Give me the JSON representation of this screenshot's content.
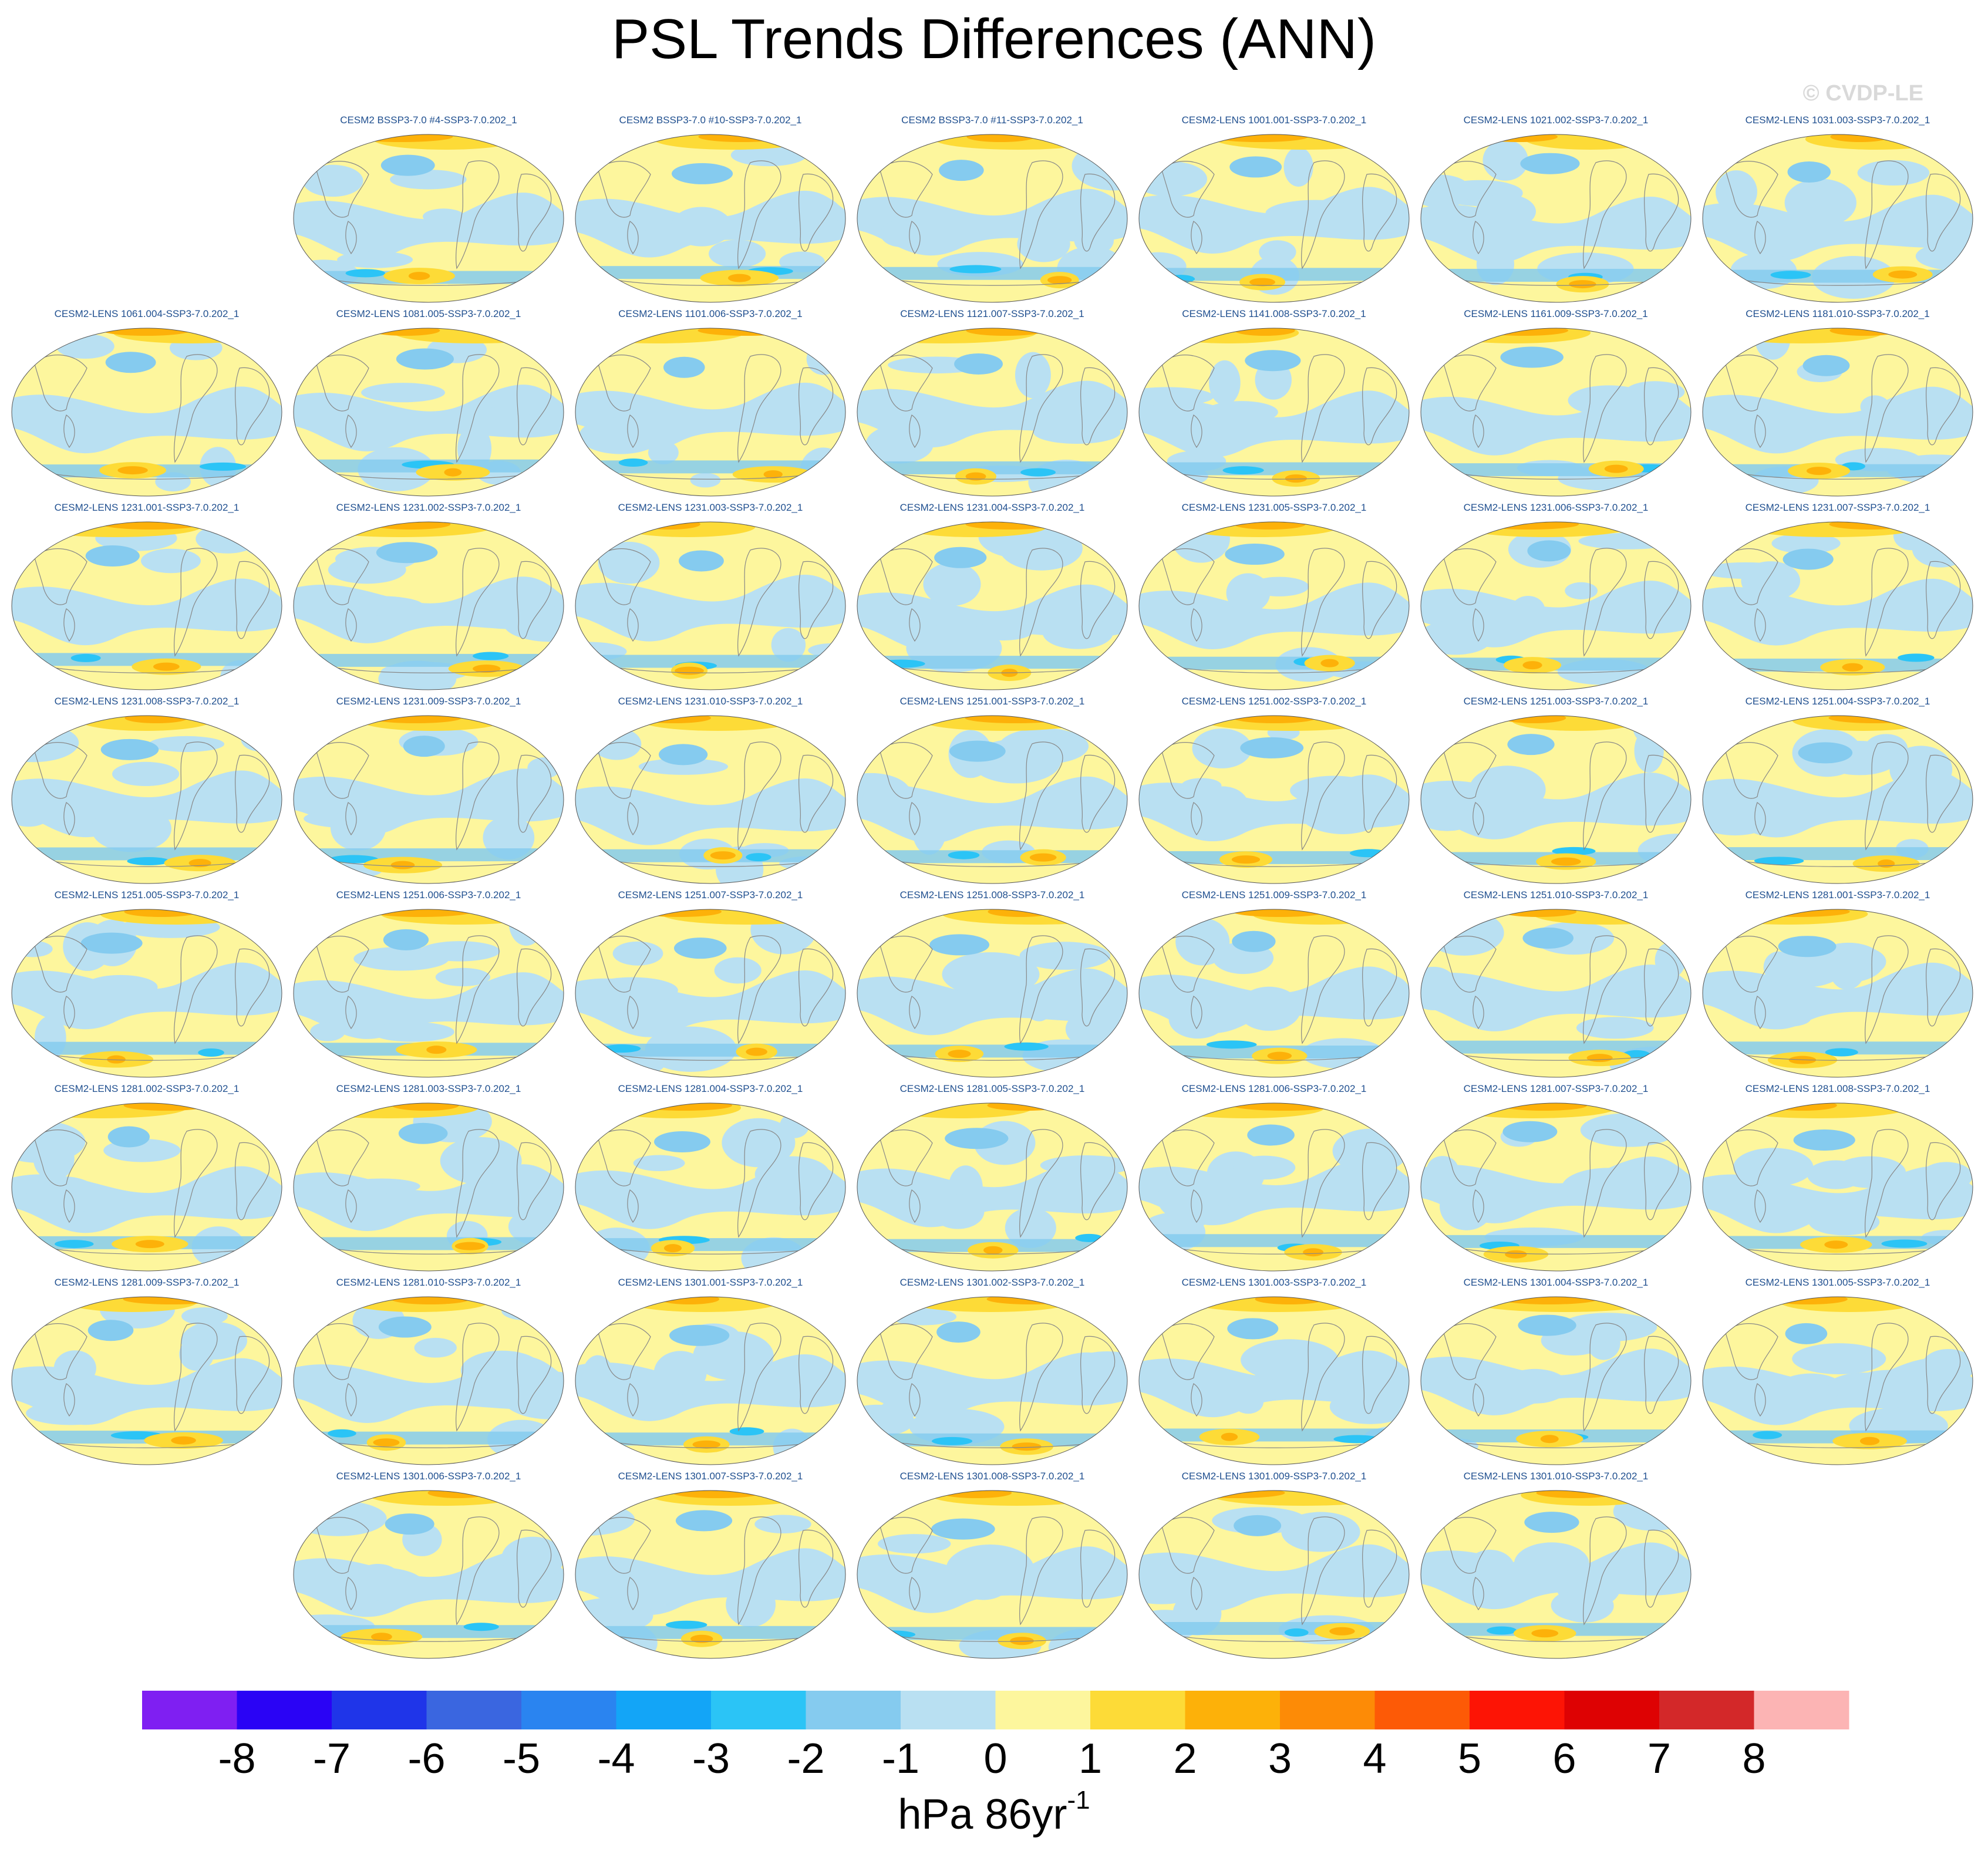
{
  "title": "PSL Trends Differences (ANN)",
  "copyright": "© CVDP-LE",
  "units": {
    "base": "hPa 86yr",
    "exponent": "-1"
  },
  "colorbar": {
    "colors": [
      "#7f1ff2",
      "#2a03f5",
      "#1f35e9",
      "#3a66e0",
      "#2a84f0",
      "#13a5f7",
      "#2bc4f6",
      "#85cbef",
      "#b9e0f2",
      "#fdf69d",
      "#fddb37",
      "#fdb109",
      "#fd8b06",
      "#fd5a06",
      "#fd1405",
      "#de0203",
      "#d32829",
      "#fcb4b4"
    ],
    "labels": [
      "-8",
      "-7",
      "-6",
      "-5",
      "-4",
      "-3",
      "-2",
      "-1",
      "0",
      "1",
      "2",
      "3",
      "4",
      "5",
      "6",
      "7",
      "8"
    ]
  },
  "rows": [
    {
      "panels": [
        "",
        "CESM2 BSSP3-7.0 #4-SSP3-7.0.202_1",
        "CESM2 BSSP3-7.0 #10-SSP3-7.0.202_1",
        "CESM2 BSSP3-7.0 #11-SSP3-7.0.202_1",
        "CESM2-LENS 1001.001-SSP3-7.0.202_1",
        "CESM2-LENS 1021.002-SSP3-7.0.202_1",
        "CESM2-LENS 1031.003-SSP3-7.0.202_1"
      ]
    },
    {
      "panels": [
        "CESM2-LENS 1061.004-SSP3-7.0.202_1",
        "CESM2-LENS 1081.005-SSP3-7.0.202_1",
        "CESM2-LENS 1101.006-SSP3-7.0.202_1",
        "CESM2-LENS 1121.007-SSP3-7.0.202_1",
        "CESM2-LENS 1141.008-SSP3-7.0.202_1",
        "CESM2-LENS 1161.009-SSP3-7.0.202_1",
        "CESM2-LENS 1181.010-SSP3-7.0.202_1"
      ]
    },
    {
      "panels": [
        "CESM2-LENS 1231.001-SSP3-7.0.202_1",
        "CESM2-LENS 1231.002-SSP3-7.0.202_1",
        "CESM2-LENS 1231.003-SSP3-7.0.202_1",
        "CESM2-LENS 1231.004-SSP3-7.0.202_1",
        "CESM2-LENS 1231.005-SSP3-7.0.202_1",
        "CESM2-LENS 1231.006-SSP3-7.0.202_1",
        "CESM2-LENS 1231.007-SSP3-7.0.202_1"
      ]
    },
    {
      "panels": [
        "CESM2-LENS 1231.008-SSP3-7.0.202_1",
        "CESM2-LENS 1231.009-SSP3-7.0.202_1",
        "CESM2-LENS 1231.010-SSP3-7.0.202_1",
        "CESM2-LENS 1251.001-SSP3-7.0.202_1",
        "CESM2-LENS 1251.002-SSP3-7.0.202_1",
        "CESM2-LENS 1251.003-SSP3-7.0.202_1",
        "CESM2-LENS 1251.004-SSP3-7.0.202_1"
      ]
    },
    {
      "panels": [
        "CESM2-LENS 1251.005-SSP3-7.0.202_1",
        "CESM2-LENS 1251.006-SSP3-7.0.202_1",
        "CESM2-LENS 1251.007-SSP3-7.0.202_1",
        "CESM2-LENS 1251.008-SSP3-7.0.202_1",
        "CESM2-LENS 1251.009-SSP3-7.0.202_1",
        "CESM2-LENS 1251.010-SSP3-7.0.202_1",
        "CESM2-LENS 1281.001-SSP3-7.0.202_1"
      ]
    },
    {
      "panels": [
        "CESM2-LENS 1281.002-SSP3-7.0.202_1",
        "CESM2-LENS 1281.003-SSP3-7.0.202_1",
        "CESM2-LENS 1281.004-SSP3-7.0.202_1",
        "CESM2-LENS 1281.005-SSP3-7.0.202_1",
        "CESM2-LENS 1281.006-SSP3-7.0.202_1",
        "CESM2-LENS 1281.007-SSP3-7.0.202_1",
        "CESM2-LENS 1281.008-SSP3-7.0.202_1"
      ]
    },
    {
      "panels": [
        "CESM2-LENS 1281.009-SSP3-7.0.202_1",
        "CESM2-LENS 1281.010-SSP3-7.0.202_1",
        "CESM2-LENS 1301.001-SSP3-7.0.202_1",
        "CESM2-LENS 1301.002-SSP3-7.0.202_1",
        "CESM2-LENS 1301.003-SSP3-7.0.202_1",
        "CESM2-LENS 1301.004-SSP3-7.0.202_1",
        "CESM2-LENS 1301.005-SSP3-7.0.202_1"
      ]
    },
    {
      "panels": [
        "",
        "CESM2-LENS 1301.006-SSP3-7.0.202_1",
        "CESM2-LENS 1301.007-SSP3-7.0.202_1",
        "CESM2-LENS 1301.008-SSP3-7.0.202_1",
        "CESM2-LENS 1301.009-SSP3-7.0.202_1",
        "CESM2-LENS 1301.010-SSP3-7.0.202_1",
        ""
      ]
    }
  ]
}
